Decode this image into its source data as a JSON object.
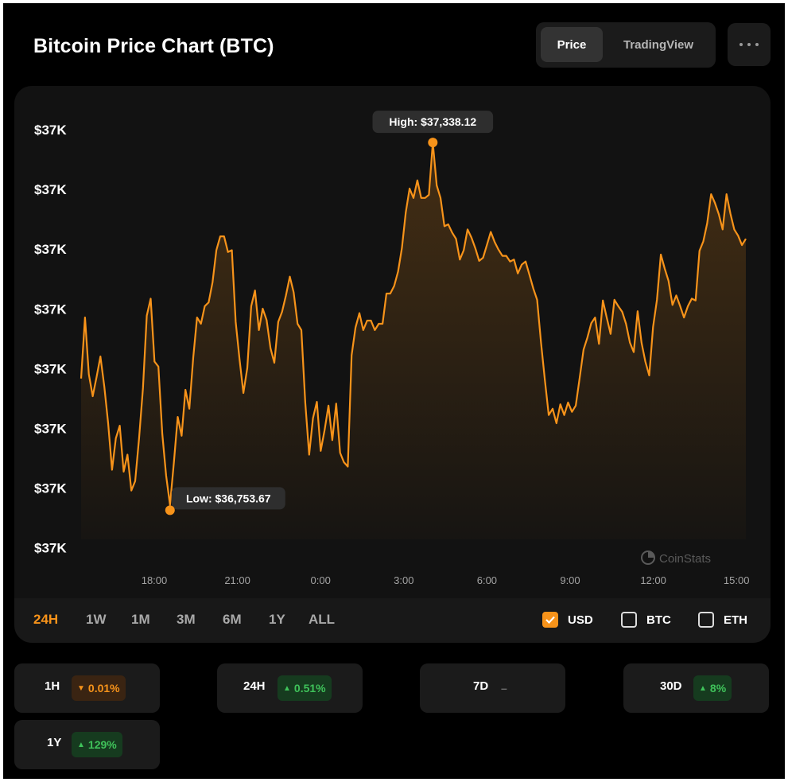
{
  "header": {
    "title": "Bitcoin Price Chart (BTC)",
    "tabs": [
      {
        "label": "Price",
        "active": true
      },
      {
        "label": "TradingView",
        "active": false
      }
    ],
    "more_icon": "ellipsis-icon"
  },
  "chart_data": {
    "type": "area",
    "y_tick_labels": [
      "$37K",
      "$37K",
      "$37K",
      "$37K",
      "$37K",
      "$37K",
      "$37K",
      "$37K"
    ],
    "x_tick_labels": [
      "18:00",
      "21:00",
      "0:00",
      "3:00",
      "6:00",
      "9:00",
      "12:00",
      "15:00"
    ],
    "ylim": [
      36720,
      37380
    ],
    "series": [
      {
        "color": "#f7931a",
        "values": [
          36963,
          37060,
          36970,
          36935,
          36965,
          36998,
          36950,
          36892,
          36818,
          36868,
          36888,
          36815,
          36842,
          36785,
          36800,
          36868,
          36948,
          37063,
          37090,
          36990,
          36982,
          36875,
          36809,
          36762,
          36830,
          36902,
          36872,
          36945,
          36915,
          36996,
          37060,
          37050,
          37078,
          37084,
          37116,
          37167,
          37189,
          37189,
          37164,
          37167,
          37053,
          36993,
          36940,
          36980,
          37078,
          37103,
          37040,
          37074,
          37056,
          37011,
          36988,
          37053,
          37069,
          37095,
          37125,
          37100,
          37050,
          37040,
          36925,
          36842,
          36900,
          36926,
          36848,
          36881,
          36920,
          36865,
          36923,
          36845,
          36830,
          36823,
          37000,
          37044,
          37067,
          37040,
          37055,
          37055,
          37040,
          37050,
          37050,
          37098,
          37098,
          37110,
          37133,
          37170,
          37227,
          37265,
          37250,
          37278,
          37250,
          37250,
          37255,
          37338,
          37270,
          37250,
          37205,
          37208,
          37195,
          37185,
          37152,
          37167,
          37200,
          37187,
          37170,
          37150,
          37155,
          37175,
          37196,
          37180,
          37168,
          37158,
          37158,
          37149,
          37152,
          37130,
          37144,
          37149,
          37128,
          37106,
          37088,
          37020,
          36960,
          36905,
          36915,
          36892,
          36922,
          36905,
          36925,
          36910,
          36920,
          36964,
          37009,
          37028,
          37051,
          37060,
          37018,
          37087,
          37060,
          37034,
          37088,
          37078,
          37069,
          37050,
          37020,
          37005,
          37070,
          37020,
          36990,
          36968,
          37045,
          37088,
          37160,
          37138,
          37118,
          37080,
          37095,
          37078,
          37060,
          37078,
          37090,
          37087,
          37166,
          37181,
          37210,
          37256,
          37242,
          37224,
          37200,
          37256,
          37225,
          37200,
          37190,
          37175,
          37185
        ]
      }
    ],
    "annotations": [
      {
        "text": "High: $37,338.12",
        "x_index": 91,
        "value": 37338.12
      },
      {
        "text": "Low: $36,753.67",
        "x_index": 23,
        "value": 36753.67
      }
    ],
    "watermark": "CoinStats",
    "grid": false
  },
  "range_selector": {
    "items": [
      "24H",
      "1W",
      "1M",
      "3M",
      "6M",
      "1Y",
      "ALL"
    ],
    "active": "24H"
  },
  "currencies": [
    {
      "label": "USD",
      "checked": true
    },
    {
      "label": "BTC",
      "checked": false
    },
    {
      "label": "ETH",
      "checked": false
    }
  ],
  "stats": [
    {
      "period": "1H",
      "change": "0.01%",
      "direction": "down"
    },
    {
      "period": "24H",
      "change": "0.51%",
      "direction": "up"
    },
    {
      "period": "7D",
      "change": "–",
      "direction": "flat"
    },
    {
      "period": "30D",
      "change": "8%",
      "direction": "up"
    },
    {
      "period": "1Y",
      "change": "129%",
      "direction": "up"
    }
  ],
  "colors": {
    "accent": "#f7931a",
    "positive": "#3fc25a",
    "background": "#000000",
    "card": "#121212"
  }
}
